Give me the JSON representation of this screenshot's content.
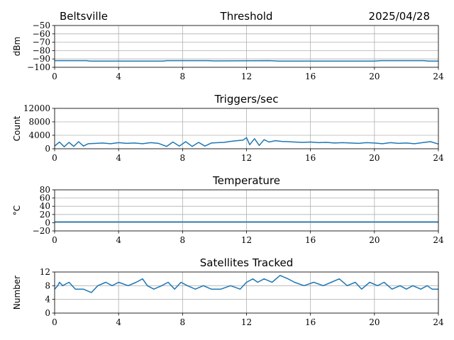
{
  "header": {
    "station": "Beltsville",
    "date": "2025/04/28"
  },
  "colors": {
    "series": "#1f77b4",
    "grid": "#b0b0b0",
    "axis": "#000000"
  },
  "chart_data": [
    {
      "type": "line",
      "title": "Threshold",
      "ylabel": "dBm",
      "xlim": [
        0,
        24
      ],
      "ylim": [
        -100,
        -50
      ],
      "xticks": [
        0,
        4,
        8,
        12,
        16,
        20,
        24
      ],
      "yticks": [
        -100,
        -90,
        -80,
        -70,
        -60,
        -50
      ],
      "grid": true,
      "series": [
        {
          "x": [
            0,
            2,
            2.2,
            6.8,
            7,
            9.6,
            10,
            13.4,
            14,
            20,
            20.4,
            23.1,
            23.4,
            24
          ],
          "y": [
            -92,
            -92,
            -92.5,
            -92.5,
            -92,
            -92,
            -92.4,
            -92,
            -92.5,
            -92.5,
            -92,
            -92,
            -92.5,
            -92.5
          ]
        }
      ]
    },
    {
      "type": "line",
      "title": "Triggers/sec",
      "ylabel": "Count",
      "xlim": [
        0,
        24
      ],
      "ylim": [
        0,
        12000
      ],
      "xticks": [
        0,
        4,
        8,
        12,
        16,
        20,
        24
      ],
      "yticks": [
        0,
        4000,
        8000,
        12000
      ],
      "grid": true,
      "series": [
        {
          "x": [
            0,
            0.3,
            0.6,
            0.9,
            1.2,
            1.5,
            1.8,
            2.1,
            2.6,
            3,
            3.5,
            4,
            4.5,
            5,
            5.5,
            6,
            6.5,
            7,
            7.4,
            7.8,
            8.2,
            8.6,
            9,
            9.4,
            9.8,
            10.2,
            10.6,
            11,
            11.4,
            11.8,
            12,
            12.2,
            12.5,
            12.8,
            13.1,
            13.4,
            13.8,
            14.2,
            14.6,
            15,
            15.5,
            16,
            16.5,
            17,
            17.5,
            18,
            18.5,
            19,
            19.5,
            20,
            20.5,
            21,
            21.5,
            22,
            22.5,
            23,
            23.5,
            24
          ],
          "y": [
            800,
            2000,
            600,
            1900,
            700,
            2100,
            800,
            1500,
            1600,
            1700,
            1500,
            1800,
            1600,
            1700,
            1500,
            1800,
            1600,
            700,
            2000,
            800,
            2100,
            700,
            1900,
            800,
            1700,
            1800,
            1900,
            2200,
            2400,
            2600,
            3300,
            1200,
            3000,
            1000,
            2700,
            2000,
            2400,
            2200,
            2100,
            2000,
            1900,
            2000,
            1800,
            1900,
            1700,
            1800,
            1700,
            1600,
            1800,
            1700,
            1500,
            1800,
            1600,
            1700,
            1500,
            1800,
            2100,
            1400
          ]
        }
      ]
    },
    {
      "type": "line",
      "title": "Temperature",
      "ylabel": "°C",
      "xlim": [
        0,
        24
      ],
      "ylim": [
        -20,
        80
      ],
      "xticks": [
        0,
        4,
        8,
        12,
        16,
        20,
        24
      ],
      "yticks": [
        -20,
        0,
        20,
        40,
        60,
        80
      ],
      "grid": true,
      "series": [
        {
          "x": [
            0,
            24
          ],
          "y": [
            2,
            2
          ]
        }
      ]
    },
    {
      "type": "line",
      "title": "Satellites Tracked",
      "ylabel": "Number",
      "xlim": [
        0,
        24
      ],
      "ylim": [
        0,
        12
      ],
      "xticks": [
        0,
        4,
        8,
        12,
        16,
        20,
        24
      ],
      "yticks": [
        0,
        4,
        8,
        12
      ],
      "grid": true,
      "series": [
        {
          "x": [
            0,
            0.2,
            0.3,
            0.5,
            0.9,
            1.3,
            1.8,
            2.3,
            2.7,
            3.2,
            3.6,
            4,
            4.6,
            5.1,
            5.5,
            5.8,
            6.2,
            6.7,
            7.1,
            7.5,
            7.9,
            8.3,
            8.8,
            9.3,
            9.8,
            10.4,
            11,
            11.6,
            12,
            12.4,
            12.7,
            13.1,
            13.6,
            14.1,
            14.6,
            15,
            15.6,
            16.2,
            16.8,
            17.3,
            17.8,
            18.3,
            18.8,
            19.2,
            19.7,
            20.2,
            20.6,
            21.1,
            21.6,
            22,
            22.4,
            22.9,
            23.3,
            23.6,
            24
          ],
          "y": [
            7,
            8,
            9,
            8,
            9,
            7,
            7,
            6,
            8,
            9,
            8,
            9,
            8,
            9,
            10,
            8,
            7,
            8,
            9,
            7,
            9,
            8,
            7,
            8,
            7,
            7,
            8,
            7,
            9,
            10,
            9,
            10,
            9,
            11,
            10,
            9,
            8,
            9,
            8,
            9,
            10,
            8,
            9,
            7,
            9,
            8,
            9,
            7,
            8,
            7,
            8,
            7,
            8,
            7,
            7
          ]
        }
      ]
    }
  ]
}
